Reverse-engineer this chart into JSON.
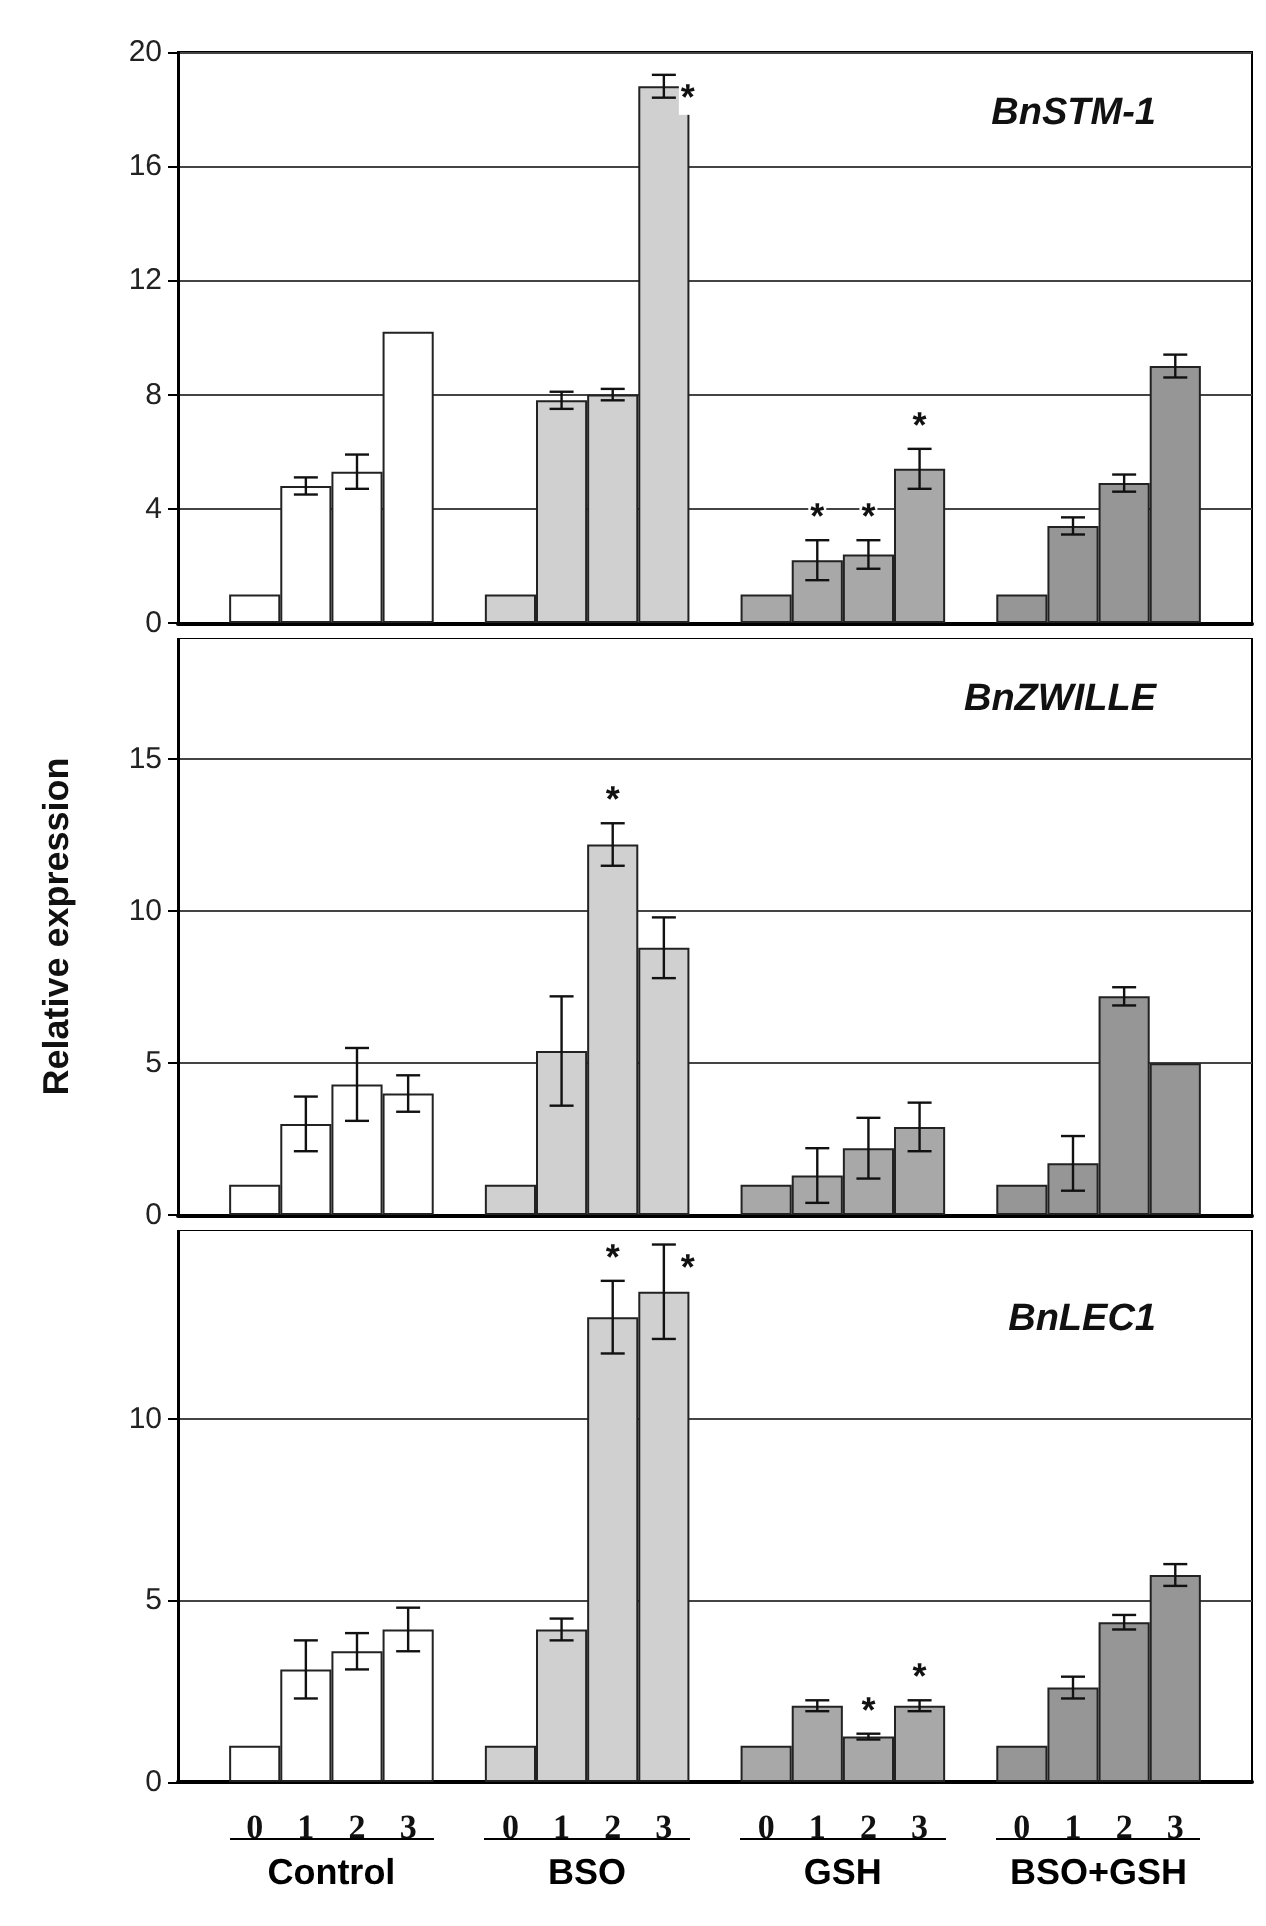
{
  "chart_data": [
    {
      "type": "bar",
      "title": "BnSTM-1",
      "categories": [
        null,
        "0",
        "1",
        "2",
        "3",
        null,
        "0",
        "1",
        "2",
        "3",
        null,
        "0",
        "1",
        "2",
        "3",
        null,
        "0",
        "1",
        "2",
        "3",
        null
      ],
      "values": [
        null,
        1,
        4.8,
        5.3,
        10.2,
        null,
        1,
        7.8,
        8.0,
        18.8,
        null,
        1,
        2.2,
        2.4,
        5.4,
        null,
        1,
        3.4,
        4.9,
        9.0,
        null
      ],
      "errors": [
        null,
        null,
        0.3,
        0.6,
        null,
        null,
        null,
        0.3,
        0.2,
        0.4,
        null,
        null,
        0.7,
        0.5,
        0.7,
        null,
        null,
        0.3,
        0.3,
        0.4,
        null
      ],
      "value_labels": [
        null,
        null,
        null,
        null,
        null,
        null,
        null,
        null,
        null,
        "*",
        null,
        null,
        "*",
        "*",
        "*",
        null,
        null,
        null,
        null,
        null,
        null
      ],
      "colors": [
        "#ffffff",
        "#ffffff",
        "#ffffff",
        "#ffffff",
        "#ffffff",
        "#d0d0d0",
        "#d0d0d0",
        "#d0d0d0",
        "#d0d0d0",
        "#d0d0d0",
        "#a8a8a8",
        "#a8a8a8",
        "#a8a8a8",
        "#a8a8a8",
        "#a8a8a8",
        "#969696",
        "#969696",
        "#969696",
        "#969696",
        "#969696",
        "#969696"
      ],
      "ylim": [
        0,
        20
      ],
      "yticks": [
        0,
        4,
        8,
        12,
        16,
        20
      ],
      "grid": "y",
      "tick_labels": "y"
    },
    {
      "type": "bar",
      "title": "BnZWILLE",
      "ylabel": "Relative expression",
      "categories": [
        null,
        "0",
        "1",
        "2",
        "3",
        null,
        "0",
        "1",
        "2",
        "3",
        null,
        "0",
        "1",
        "2",
        "3",
        null,
        "0",
        "1",
        "2",
        "3",
        null
      ],
      "values": [
        null,
        1,
        3.0,
        4.3,
        4.0,
        null,
        1,
        5.4,
        12.2,
        8.8,
        null,
        1,
        1.3,
        2.2,
        2.9,
        null,
        1,
        1.7,
        7.2,
        5.0,
        null
      ],
      "errors": [
        null,
        null,
        0.9,
        1.2,
        0.6,
        null,
        null,
        1.8,
        0.7,
        1.0,
        null,
        null,
        0.9,
        1.0,
        0.8,
        null,
        null,
        0.9,
        0.3,
        null,
        null
      ],
      "value_labels": [
        null,
        null,
        null,
        null,
        null,
        null,
        null,
        null,
        "*",
        null,
        null,
        null,
        null,
        null,
        null,
        null,
        null,
        null,
        null,
        null,
        null
      ],
      "colors": [
        "#ffffff",
        "#ffffff",
        "#ffffff",
        "#ffffff",
        "#ffffff",
        "#d0d0d0",
        "#d0d0d0",
        "#d0d0d0",
        "#d0d0d0",
        "#d0d0d0",
        "#a8a8a8",
        "#a8a8a8",
        "#a8a8a8",
        "#a8a8a8",
        "#a8a8a8",
        "#969696",
        "#969696",
        "#969696",
        "#969696",
        "#969696",
        "#969696"
      ],
      "ylim": [
        0,
        19
      ],
      "yticks": [
        0,
        5,
        10,
        15
      ],
      "grid": "y",
      "tick_labels": "y"
    },
    {
      "type": "bar",
      "title": "BnLEC1",
      "categories": [
        null,
        "0",
        "1",
        "2",
        "3",
        null,
        "0",
        "1",
        "2",
        "3",
        null,
        "0",
        "1",
        "2",
        "3",
        null,
        "0",
        "1",
        "2",
        "3",
        null
      ],
      "values": [
        null,
        1,
        3.1,
        3.6,
        4.2,
        null,
        1,
        4.2,
        12.8,
        13.5,
        null,
        1,
        2.1,
        1.25,
        2.1,
        null,
        1,
        2.6,
        4.4,
        5.7,
        null
      ],
      "errors": [
        null,
        null,
        0.8,
        0.5,
        0.6,
        null,
        null,
        0.3,
        1.0,
        1.3,
        null,
        null,
        0.15,
        0.08,
        0.15,
        null,
        null,
        0.3,
        0.2,
        0.3,
        null
      ],
      "value_labels": [
        null,
        null,
        null,
        null,
        null,
        null,
        null,
        null,
        "*",
        "*",
        null,
        null,
        null,
        "*",
        "*",
        null,
        null,
        null,
        null,
        null,
        null
      ],
      "colors": [
        "#ffffff",
        "#ffffff",
        "#ffffff",
        "#ffffff",
        "#ffffff",
        "#d0d0d0",
        "#d0d0d0",
        "#d0d0d0",
        "#d0d0d0",
        "#d0d0d0",
        "#a8a8a8",
        "#a8a8a8",
        "#a8a8a8",
        "#a8a8a8",
        "#a8a8a8",
        "#969696",
        "#969696",
        "#969696",
        "#969696",
        "#969696",
        "#969696"
      ],
      "ylim": [
        0,
        15.2
      ],
      "yticks": [
        0,
        5,
        10
      ],
      "grid": "y",
      "annotations": [
        "Control",
        "BSO",
        "GSH",
        "BSO+GSH"
      ]
    }
  ]
}
